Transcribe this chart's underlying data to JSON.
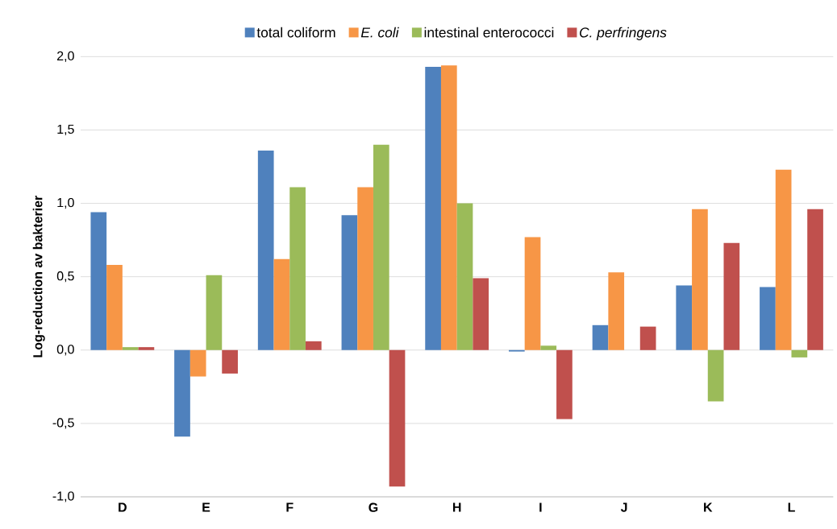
{
  "chart_data": {
    "type": "bar",
    "ylabel": "Log-reduction av bakterier",
    "categories": [
      "D",
      "E",
      "F",
      "G",
      "H",
      "I",
      "J",
      "K",
      "L"
    ],
    "series": [
      {
        "name": "total coliform",
        "color": "#4f81bd",
        "values": [
          0.94,
          -0.59,
          1.36,
          0.92,
          1.93,
          -0.01,
          0.17,
          0.44,
          0.43
        ]
      },
      {
        "name": "*E. coli*",
        "color": "#f79646",
        "values": [
          0.58,
          -0.18,
          0.62,
          1.11,
          1.94,
          0.77,
          0.53,
          0.96,
          1.23
        ]
      },
      {
        "name": "intestinal enterococci",
        "color": "#9bbb59",
        "values": [
          0.02,
          0.51,
          1.11,
          1.4,
          1.0,
          0.03,
          null,
          -0.35,
          -0.05
        ]
      },
      {
        "name": "*C. perfringens*",
        "color": "#c0504d",
        "values": [
          0.02,
          -0.16,
          0.06,
          -0.93,
          0.49,
          -0.47,
          0.16,
          0.73,
          0.96
        ]
      }
    ],
    "ylim": [
      -1.0,
      2.0
    ],
    "yticks": [
      {
        "value": -1.0,
        "label": "-1,0"
      },
      {
        "value": -0.5,
        "label": "-0,5"
      },
      {
        "value": 0,
        "label": "0,0"
      },
      {
        "value": 0.5,
        "label": "0,5"
      },
      {
        "value": 1.0,
        "label": "1,0"
      },
      {
        "value": 1.5,
        "label": "1,5"
      },
      {
        "value": 2.0,
        "label": "2,0"
      }
    ],
    "grid": "y",
    "legend": "top"
  }
}
